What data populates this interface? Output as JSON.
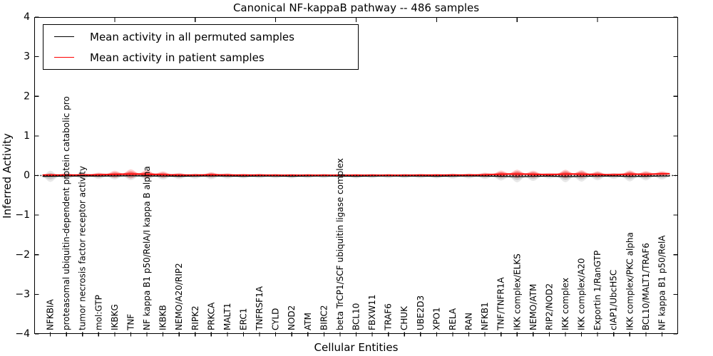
{
  "figure": {
    "title": "Canonical NF-kappaB pathway -- 486 samples",
    "xlabel": "Cellular Entities",
    "ylabel": "Inferred Activity",
    "background": "#ffffff"
  },
  "legend": {
    "position": "upper left",
    "entries": [
      {
        "label": "Mean activity in all permuted samples",
        "color": "#000000"
      },
      {
        "label": "Mean activity in patient samples",
        "color": "#ff0000"
      }
    ]
  },
  "chart_data": {
    "type": "violin+line",
    "title": "Canonical NF-kappaB pathway -- 486 samples",
    "xlabel": "Cellular Entities",
    "ylabel": "Inferred Activity",
    "ylim": [
      -4,
      4
    ],
    "yticks": [
      -4,
      -3,
      -2,
      -1,
      0,
      1,
      2,
      3,
      4
    ],
    "top_tick_positions": [
      5,
      10,
      15,
      20,
      25,
      30,
      35
    ],
    "grid": false,
    "categories": [
      "NFKBIA",
      "proteasomal ubiquitin-dependent protein catabolic pro",
      "tumor necrosis factor receptor activity",
      "mol:GTP",
      "IKBKG",
      "TNF",
      "NF kappa B1 p50/RelA/I kappa B alpha",
      "IKBKB",
      "NEMO/A20/RIP2",
      "RIPK2",
      "PRKCA",
      "MALT1",
      "ERC1",
      "TNFRSF1A",
      "CYLD",
      "NOD2",
      "ATM",
      "BIRC2",
      "beta TrCP1/SCF ubiquitin ligase complex",
      "BCL10",
      "FBXW11",
      "TRAF6",
      "CHUK",
      "UBE2D3",
      "XPO1",
      "RELA",
      "RAN",
      "NFKB1",
      "TNF/TNFR1A",
      "IKK complex/ELKS",
      "NEMO/ATM",
      "RIP2/NOD2",
      "IKK complex",
      "IKK complex/A20",
      "Exportin 1/RanGTP",
      "cIAP1/UbcH5C",
      "IKK complex/PKC alpha",
      "BCL10/MALT1/TRAF6",
      "NF kappa B1 p50/RelA"
    ],
    "series": [
      {
        "name": "Mean activity in all permuted samples",
        "color": "#000000",
        "values": [
          -0.02,
          -0.015,
          -0.012,
          -0.015,
          -0.01,
          -0.008,
          -0.01,
          -0.015,
          -0.018,
          -0.015,
          -0.012,
          -0.015,
          -0.018,
          -0.015,
          -0.015,
          -0.018,
          -0.015,
          -0.012,
          -0.015,
          -0.018,
          -0.015,
          -0.012,
          -0.015,
          -0.015,
          -0.018,
          -0.015,
          -0.012,
          -0.015,
          -0.02,
          -0.03,
          -0.022,
          -0.015,
          -0.028,
          -0.022,
          -0.015,
          -0.012,
          -0.025,
          -0.018,
          -0.012
        ]
      },
      {
        "name": "Mean activity in patient samples",
        "color": "#ff0000",
        "values": [
          0.012,
          0.012,
          0.012,
          0.018,
          0.03,
          0.04,
          0.035,
          0.022,
          0.012,
          0.01,
          0.02,
          0.012,
          0.01,
          0.01,
          0.008,
          0.008,
          0.008,
          0.008,
          0.008,
          0.008,
          0.008,
          0.008,
          0.008,
          0.01,
          0.01,
          0.012,
          0.012,
          0.018,
          0.035,
          0.04,
          0.032,
          0.022,
          0.04,
          0.035,
          0.025,
          0.018,
          0.038,
          0.03,
          0.045
        ]
      }
    ],
    "violins": [
      {
        "name": "permuted-samples-distribution",
        "fill_outer": "rgba(0,0,0,0.09)",
        "fill_inner": "rgba(0,0,0,0.12)",
        "half_widths": [
          0.144,
          0.09,
          0.072,
          0.072,
          0.09,
          0.108,
          0.108,
          0.09,
          0.072,
          0.063,
          0.081,
          0.063,
          0.054,
          0.054,
          0.054,
          0.054,
          0.054,
          0.054,
          0.054,
          0.054,
          0.054,
          0.054,
          0.054,
          0.054,
          0.054,
          0.063,
          0.063,
          0.072,
          0.108,
          0.144,
          0.117,
          0.063,
          0.144,
          0.135,
          0.108,
          0.072,
          0.126,
          0.108,
          0.09
        ]
      },
      {
        "name": "patient-samples-distribution",
        "fill_outer": "rgba(255,0,0,0.20)",
        "fill_inner": "rgba(255,0,0,0.35)",
        "half_widths": [
          0.045,
          0.045,
          0.045,
          0.054,
          0.09,
          0.117,
          0.108,
          0.081,
          0.054,
          0.036,
          0.063,
          0.045,
          0.036,
          0.036,
          0.032,
          0.032,
          0.032,
          0.032,
          0.032,
          0.032,
          0.032,
          0.032,
          0.032,
          0.032,
          0.032,
          0.036,
          0.036,
          0.054,
          0.09,
          0.108,
          0.09,
          0.045,
          0.108,
          0.099,
          0.081,
          0.045,
          0.09,
          0.081,
          0.063
        ]
      }
    ],
    "zero_line": {
      "value": 0,
      "color": "#000000",
      "style": "dotted"
    }
  }
}
